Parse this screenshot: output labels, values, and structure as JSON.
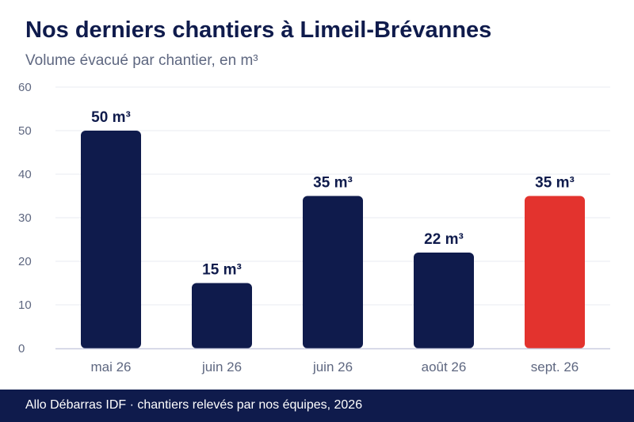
{
  "title": "Nos derniers chantiers à Limeil-Brévannes",
  "subtitle": "Volume évacué par chantier, en m³",
  "footer": "Allo Débarras IDF · chantiers relevés par nos équipes, 2026",
  "colors": {
    "bar": "#0f1b4c",
    "highlight": "#e3332e",
    "grid": "#e9ebf1",
    "axis": "#c9cde0",
    "tick_text": "#5e6780",
    "label_text": "#0f1b4c"
  },
  "chart_data": {
    "type": "bar",
    "categories": [
      "mai 26",
      "juin 26",
      "juin 26",
      "août 26",
      "sept. 26"
    ],
    "values": [
      50,
      15,
      35,
      22,
      35
    ],
    "value_labels": [
      "50 m³",
      "15 m³",
      "35 m³",
      "22 m³",
      "35 m³"
    ],
    "highlight_index": 4,
    "ylim": [
      0,
      60
    ],
    "yticks": [
      0,
      10,
      20,
      30,
      40,
      50,
      60
    ],
    "grid": true,
    "xlabel": "",
    "ylabel": ""
  }
}
